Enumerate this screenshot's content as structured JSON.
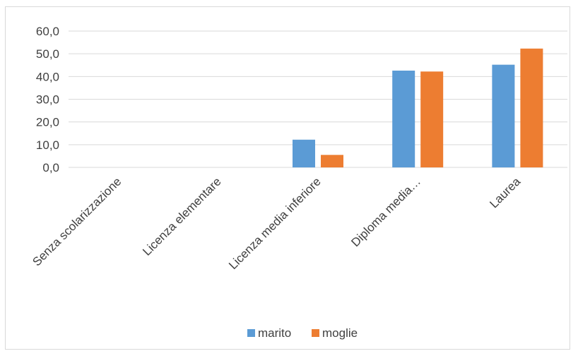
{
  "chart_data": {
    "type": "bar",
    "title": "",
    "xlabel": "",
    "ylabel": "",
    "categories": [
      "Senza scolarizzazione",
      "Licenza elementare",
      "Licenza media inferiore",
      "Diploma media…",
      "Laurea"
    ],
    "series": [
      {
        "name": "marito",
        "color": "#5b9bd5",
        "values": [
          0,
          0,
          12.2,
          42.6,
          45.2
        ]
      },
      {
        "name": "moglie",
        "color": "#ed7d31",
        "values": [
          0,
          0,
          5.5,
          42.2,
          52.3
        ]
      }
    ],
    "ylim": [
      0,
      60
    ],
    "yticks": [
      "0,0",
      "10,0",
      "20,0",
      "30,0",
      "40,0",
      "50,0",
      "60,0"
    ],
    "grid": true,
    "legend_position": "bottom"
  }
}
